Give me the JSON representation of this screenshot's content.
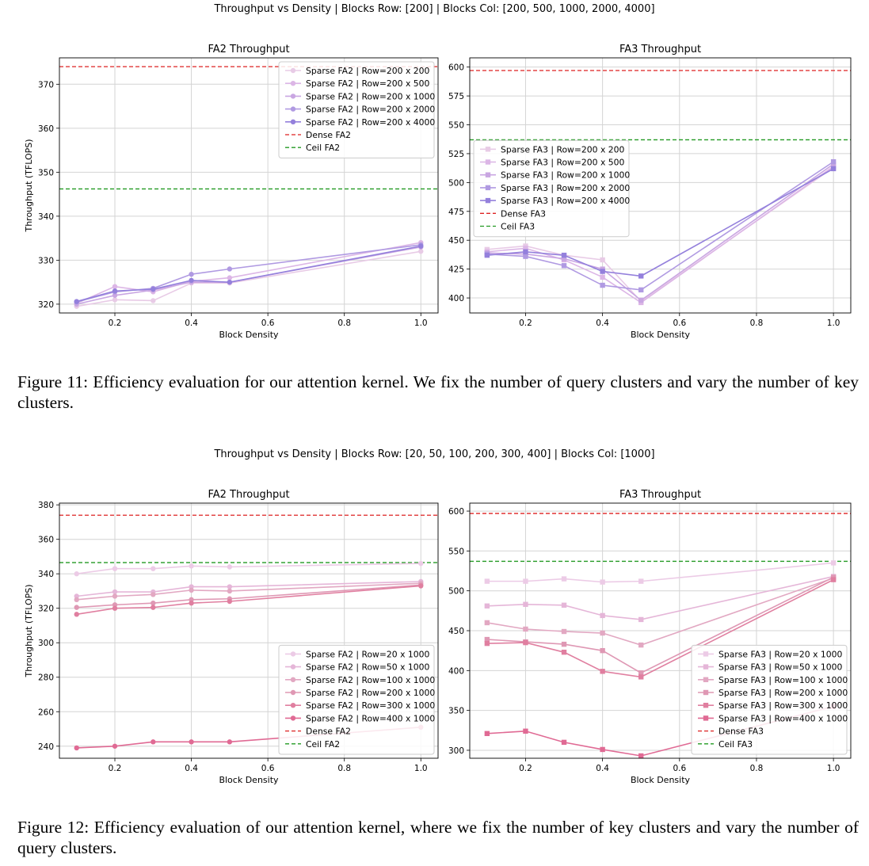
{
  "figures": [
    {
      "id": "fig11",
      "suptitle": "Throughput vs Density | Blocks Row: [200] | Blocks Col: [200, 500, 1000, 2000, 4000]",
      "caption": "Figure 11: Efficiency evaluation for our attention kernel. We fix the number of query clusters and vary the number of key clusters."
    },
    {
      "id": "fig12",
      "suptitle": "Throughput vs Density | Blocks Row: [20, 50, 100, 200, 300, 400] | Blocks Col: [1000]",
      "caption": "Figure 12: Efficiency evaluation of our attention kernel, where we fix the number of key clusters and vary the number of query clusters."
    }
  ],
  "chart_data": [
    {
      "id": "fig11-fa2",
      "type": "line",
      "title": "FA2 Throughput",
      "xlabel": "Block Density",
      "ylabel": "Throughput (TFLOPS)",
      "xlim": [
        0.055,
        1.045
      ],
      "ylim": [
        318,
        376
      ],
      "xticks": [
        0.2,
        0.4,
        0.6,
        0.8,
        1.0
      ],
      "xtick_labels": [
        "0.2",
        "0.4",
        "0.6",
        "0.8",
        "1.0"
      ],
      "yticks": [
        320,
        330,
        340,
        350,
        360,
        370
      ],
      "marker": "circle",
      "legend_loc": "upper-right",
      "x": [
        0.1,
        0.2,
        0.3,
        0.4,
        0.5,
        1.0
      ],
      "series": [
        {
          "name": "Sparse FA2 | Row=200 x 200",
          "color": "#e8cbe6",
          "values": [
            319.5,
            321.0,
            320.8,
            324.8,
            324.8,
            332.0
          ]
        },
        {
          "name": "Sparse FA2 | Row=200 x 500",
          "color": "#dcb6e6",
          "values": [
            320.2,
            324.0,
            322.8,
            325.2,
            326.0,
            334.0
          ]
        },
        {
          "name": "Sparse FA2 | Row=200 x 1000",
          "color": "#c9a6e2",
          "values": [
            320.0,
            322.0,
            323.2,
            325.0,
            325.0,
            333.0
          ]
        },
        {
          "name": "Sparse FA2 | Row=200 x 2000",
          "color": "#b09ae2",
          "values": [
            320.5,
            322.8,
            323.6,
            326.8,
            328.0,
            333.5
          ]
        },
        {
          "name": "Sparse FA2 | Row=200 x 4000",
          "color": "#9480dc",
          "values": [
            320.6,
            323.0,
            323.4,
            325.4,
            325.0,
            333.2
          ]
        }
      ],
      "hlines": [
        {
          "name": "Dense FA2",
          "value": 374,
          "color": "#dd2222"
        },
        {
          "name": "Ceil FA2",
          "value": 346.2,
          "color": "#229922"
        }
      ]
    },
    {
      "id": "fig11-fa3",
      "type": "line",
      "title": "FA3 Throughput",
      "xlabel": "Block Density",
      "ylabel": "",
      "xlim": [
        0.055,
        1.045
      ],
      "ylim": [
        387,
        608
      ],
      "xticks": [
        0.2,
        0.4,
        0.6,
        0.8,
        1.0
      ],
      "xtick_labels": [
        "0.2",
        "0.4",
        "0.6",
        "0.8",
        "1.0"
      ],
      "yticks": [
        400,
        425,
        450,
        475,
        500,
        525,
        550,
        575,
        600
      ],
      "marker": "square",
      "legend_loc": "center-left",
      "x": [
        0.1,
        0.2,
        0.3,
        0.4,
        0.5,
        1.0
      ],
      "series": [
        {
          "name": "Sparse FA3 | Row=200 x 200",
          "color": "#e8cbe6",
          "values": [
            442,
            445,
            437,
            433,
            397,
            513
          ]
        },
        {
          "name": "Sparse FA3 | Row=200 x 500",
          "color": "#dcb6e6",
          "values": [
            440,
            443,
            433,
            418,
            396,
            514
          ]
        },
        {
          "name": "Sparse FA3 | Row=200 x 1000",
          "color": "#c9a6e2",
          "values": [
            439,
            438,
            434,
            425,
            398,
            516
          ]
        },
        {
          "name": "Sparse FA3 | Row=200 x 2000",
          "color": "#b09ae2",
          "values": [
            438,
            436,
            428,
            411,
            407,
            518
          ]
        },
        {
          "name": "Sparse FA3 | Row=200 x 4000",
          "color": "#9480dc",
          "values": [
            437,
            440,
            437,
            423,
            419,
            512
          ]
        }
      ],
      "hlines": [
        {
          "name": "Dense FA3",
          "value": 597,
          "color": "#dd2222"
        },
        {
          "name": "Ceil FA3",
          "value": 537,
          "color": "#229922"
        }
      ]
    },
    {
      "id": "fig12-fa2",
      "type": "line",
      "title": "FA2 Throughput",
      "xlabel": "Block Density",
      "ylabel": "Throughput (TFLOPS)",
      "xlim": [
        0.055,
        1.045
      ],
      "ylim": [
        233,
        381
      ],
      "xticks": [
        0.2,
        0.4,
        0.6,
        0.8,
        1.0
      ],
      "xtick_labels": [
        "0.2",
        "0.4",
        "0.6",
        "0.8",
        "1.0"
      ],
      "yticks": [
        240,
        260,
        280,
        300,
        320,
        340,
        360,
        380
      ],
      "marker": "circle",
      "legend_loc": "lower-right",
      "x": [
        0.1,
        0.2,
        0.3,
        0.4,
        0.5,
        1.0
      ],
      "series": [
        {
          "name": "Sparse FA2 | Row=20 x 1000",
          "color": "#eccbe6",
          "values": [
            340,
            343,
            343,
            344.5,
            344,
            346
          ]
        },
        {
          "name": "Sparse FA2 | Row=50 x 1000",
          "color": "#e5b6d8",
          "values": [
            327,
            329.5,
            329.5,
            332.5,
            332.5,
            335.5
          ]
        },
        {
          "name": "Sparse FA2 | Row=100 x 1000",
          "color": "#e2a8c2",
          "values": [
            325,
            327,
            328,
            330.5,
            330,
            334.5
          ]
        },
        {
          "name": "Sparse FA2 | Row=200 x 1000",
          "color": "#df98b4",
          "values": [
            320.5,
            322,
            323,
            325,
            325.5,
            333.5
          ]
        },
        {
          "name": "Sparse FA2 | Row=300 x 1000",
          "color": "#e07fa0",
          "values": [
            316.5,
            320,
            320.5,
            323,
            324,
            333
          ]
        },
        {
          "name": "Sparse FA2 | Row=400 x 1000",
          "color": "#e06a94",
          "values": [
            239,
            240,
            242.5,
            242.5,
            242.5,
            251
          ]
        }
      ],
      "hlines": [
        {
          "name": "Dense FA2",
          "value": 374,
          "color": "#dd2222"
        },
        {
          "name": "Ceil FA2",
          "value": 346.5,
          "color": "#229922"
        }
      ]
    },
    {
      "id": "fig12-fa3",
      "type": "line",
      "title": "FA3 Throughput",
      "xlabel": "Block Density",
      "ylabel": "",
      "xlim": [
        0.055,
        1.045
      ],
      "ylim": [
        290,
        610
      ],
      "xticks": [
        0.2,
        0.4,
        0.6,
        0.8,
        1.0
      ],
      "xtick_labels": [
        "0.2",
        "0.4",
        "0.6",
        "0.8",
        "1.0"
      ],
      "yticks": [
        300,
        350,
        400,
        450,
        500,
        550,
        600
      ],
      "marker": "square",
      "legend_loc": "lower-right",
      "x": [
        0.1,
        0.2,
        0.3,
        0.4,
        0.5,
        1.0
      ],
      "series": [
        {
          "name": "Sparse FA3 | Row=20 x 1000",
          "color": "#eccbe6",
          "values": [
            512,
            512,
            515,
            511,
            512,
            535
          ]
        },
        {
          "name": "Sparse FA3 | Row=50 x 1000",
          "color": "#e5b6d8",
          "values": [
            481,
            483,
            482,
            469,
            464,
            518
          ]
        },
        {
          "name": "Sparse FA3 | Row=100 x 1000",
          "color": "#e2a8c2",
          "values": [
            460,
            452,
            449,
            447,
            432,
            516
          ]
        },
        {
          "name": "Sparse FA3 | Row=200 x 1000",
          "color": "#df98b4",
          "values": [
            439,
            436,
            433,
            425,
            397,
            517
          ]
        },
        {
          "name": "Sparse FA3 | Row=300 x 1000",
          "color": "#e07fa0",
          "values": [
            434,
            435,
            423,
            399,
            392,
            514
          ]
        },
        {
          "name": "Sparse FA3 | Row=400 x 1000",
          "color": "#e06a94",
          "values": [
            321,
            324,
            310,
            301,
            293,
            355
          ]
        }
      ],
      "hlines": [
        {
          "name": "Dense FA3",
          "value": 597,
          "color": "#dd2222"
        },
        {
          "name": "Ceil FA3",
          "value": 537,
          "color": "#229922"
        }
      ]
    }
  ]
}
